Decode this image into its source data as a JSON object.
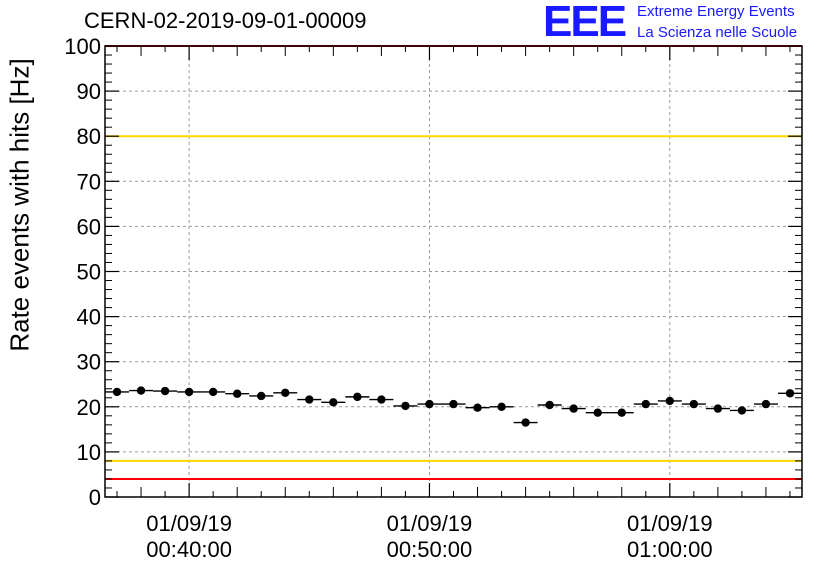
{
  "header": {
    "title": "CERN-02-2019-09-01-00009",
    "logo_text": "EEE",
    "logo_line1": "Extreme Energy Events",
    "logo_line2": "La Scienza nelle Scuole"
  },
  "chart_data": {
    "type": "scatter",
    "title": "CERN-02-2019-09-01-00009",
    "xlabel": "",
    "ylabel": "Rate events with hits [Hz]",
    "ylim": [
      0,
      100
    ],
    "xlim": [
      "2019-09-01 00:36:30",
      "2019-09-01 01:05:30"
    ],
    "yticks": [
      0,
      10,
      20,
      30,
      40,
      50,
      60,
      70,
      80,
      90,
      100
    ],
    "xticks": [
      {
        "time": "2019-09-01 00:40:00",
        "label_date": "01/09/19",
        "label_time": "00:40:00"
      },
      {
        "time": "2019-09-01 00:50:00",
        "label_date": "01/09/19",
        "label_time": "00:50:00"
      },
      {
        "time": "2019-09-01 01:00:00",
        "label_date": "01/09/19",
        "label_time": "01:00:00"
      }
    ],
    "grid": true,
    "bin_seconds": 60,
    "x": [
      "2019-09-01 00:37:00",
      "2019-09-01 00:38:00",
      "2019-09-01 00:39:00",
      "2019-09-01 00:40:00",
      "2019-09-01 00:41:00",
      "2019-09-01 00:42:00",
      "2019-09-01 00:43:00",
      "2019-09-01 00:44:00",
      "2019-09-01 00:45:00",
      "2019-09-01 00:46:00",
      "2019-09-01 00:47:00",
      "2019-09-01 00:48:00",
      "2019-09-01 00:49:00",
      "2019-09-01 00:50:00",
      "2019-09-01 00:51:00",
      "2019-09-01 00:52:00",
      "2019-09-01 00:53:00",
      "2019-09-01 00:54:00",
      "2019-09-01 00:55:00",
      "2019-09-01 00:56:00",
      "2019-09-01 00:57:00",
      "2019-09-01 00:58:00",
      "2019-09-01 00:59:00",
      "2019-09-01 01:00:00",
      "2019-09-01 01:01:00",
      "2019-09-01 01:02:00",
      "2019-09-01 01:03:00",
      "2019-09-01 01:04:00",
      "2019-09-01 01:05:00"
    ],
    "values": [
      23.3,
      23.6,
      23.5,
      23.3,
      23.3,
      22.9,
      22.4,
      23.1,
      21.6,
      21.0,
      22.2,
      21.6,
      20.2,
      20.6,
      20.6,
      19.8,
      20.0,
      16.5,
      20.4,
      19.6,
      18.7,
      18.7,
      20.6,
      21.3,
      20.6,
      19.6,
      19.2,
      20.6,
      23.0
    ],
    "reference_lines": [
      {
        "value": 80,
        "color": "#ffd700"
      },
      {
        "value": 8,
        "color": "#ffd700"
      },
      {
        "value": 4,
        "color": "#ff0000"
      },
      {
        "value": 100,
        "color": "#ff0000"
      }
    ],
    "marker_color": "#000000"
  }
}
